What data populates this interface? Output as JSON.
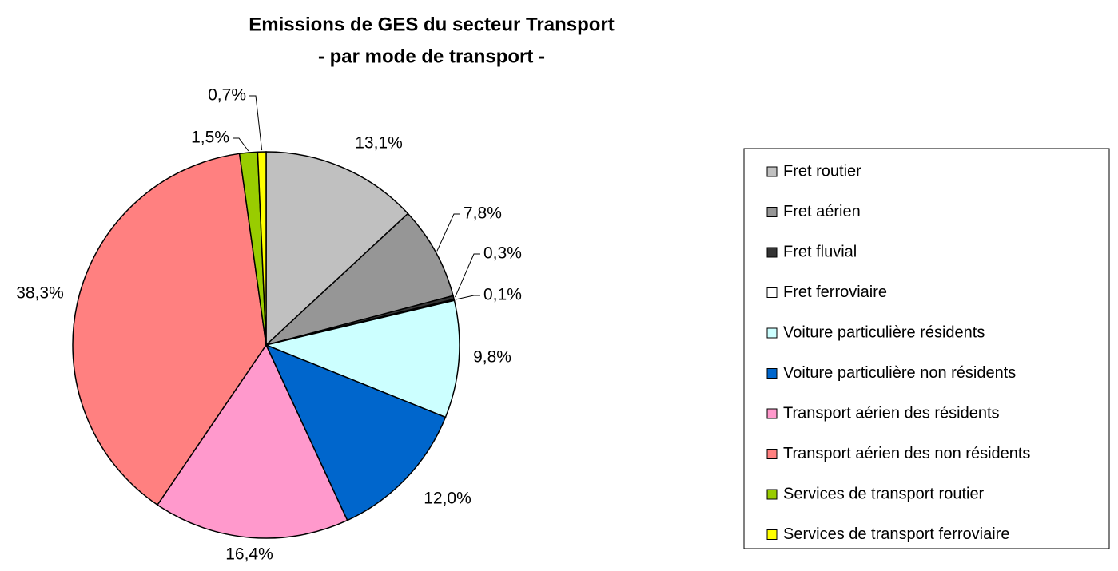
{
  "chart_data": {
    "type": "pie",
    "title": "Emissions de GES du secteur Transport",
    "subtitle": "- par mode de transport -",
    "categories": [
      "Fret routier",
      "Fret aérien",
      "Fret fluvial",
      "Fret ferroviaire",
      "Voiture particulière résidents",
      "Voiture particulière non résidents",
      "Transport aérien des résidents",
      "Transport aérien des non résidents",
      "Services de transport routier",
      "Services de transport ferroviaire"
    ],
    "values": [
      13.1,
      7.8,
      0.3,
      0.1,
      9.8,
      12.0,
      16.4,
      38.3,
      1.5,
      0.7
    ],
    "value_labels": [
      "13,1%",
      "7,8%",
      "0,3%",
      "0,1%",
      "9,8%",
      "12,0%",
      "16,4%",
      "38,3%",
      "1,5%",
      "0,7%"
    ],
    "colors": [
      "#c0c0c0",
      "#969696",
      "#333333",
      "#ffffff",
      "#ccffff",
      "#0066cc",
      "#ff99cc",
      "#ff8080",
      "#99cc00",
      "#ffff00"
    ],
    "legend": "right"
  }
}
